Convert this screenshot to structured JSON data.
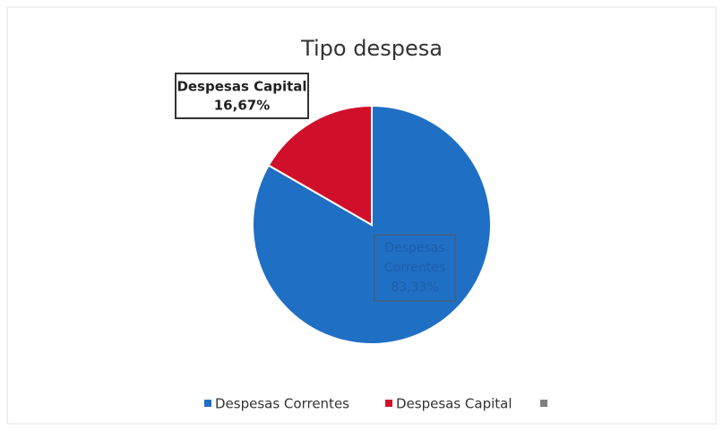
{
  "chart_data": {
    "type": "pie",
    "title": "Tipo despesa",
    "categories": [
      "Despesas Correntes",
      "Despesas Capital",
      null
    ],
    "values": [
      83.33,
      16.67,
      0
    ],
    "value_labels": [
      "83,33%",
      "16,67%",
      null
    ],
    "colors": [
      "#1f6fc5",
      "#d0102a",
      "#7f7f7f"
    ],
    "legend": "bottom"
  }
}
